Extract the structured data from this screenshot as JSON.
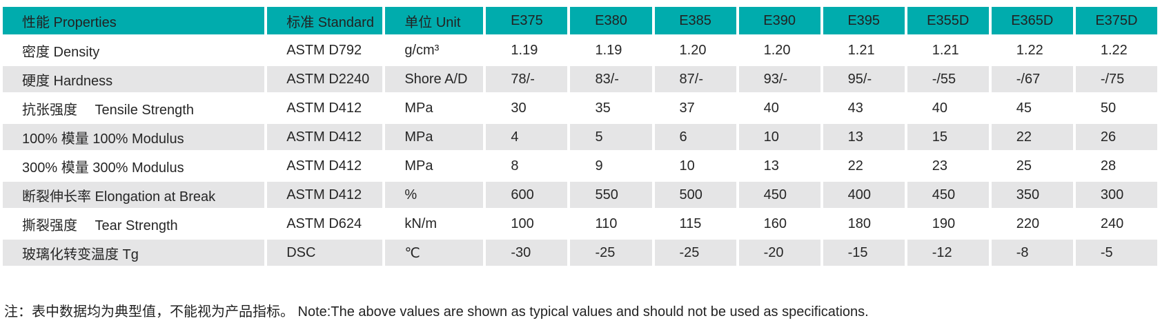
{
  "colors": {
    "header_background": "#00ACAD",
    "alt_row_background": "#E5E5E6",
    "text": "#262626"
  },
  "table": {
    "columns": [
      {
        "key": "properties",
        "label": "性能  Properties"
      },
      {
        "key": "standard",
        "label": "标准 Standard"
      },
      {
        "key": "unit",
        "label": "单位 Unit"
      },
      {
        "key": "e375",
        "label": "E375"
      },
      {
        "key": "e380",
        "label": "E380"
      },
      {
        "key": "e385",
        "label": "E385"
      },
      {
        "key": "e390",
        "label": "E390"
      },
      {
        "key": "e395",
        "label": "E395"
      },
      {
        "key": "e355d",
        "label": "E355D"
      },
      {
        "key": "e365d",
        "label": "E365D"
      },
      {
        "key": "e375d",
        "label": "E375D"
      }
    ],
    "rows": [
      {
        "property": "密度  Density",
        "standard": "ASTM D792",
        "unit": "g/cm³",
        "values": [
          "1.19",
          "1.19",
          "1.20",
          "1.20",
          "1.21",
          "1.21",
          "1.22",
          "1.22"
        ]
      },
      {
        "property": "硬度  Hardness",
        "standard": "ASTM D2240",
        "unit": "Shore A/D",
        "values": [
          "78/-",
          "83/-",
          "87/-",
          "93/-",
          "95/-",
          "-/55",
          "-/67",
          "-/75"
        ]
      },
      {
        "property": "抗张强度　  Tensile Strength",
        "standard": "ASTM D412",
        "unit": "MPa",
        "values": [
          "30",
          "35",
          "37",
          "40",
          "43",
          "40",
          "45",
          "50"
        ]
      },
      {
        "property": "100% 模量  100% Modulus",
        "standard": "ASTM D412",
        "unit": "MPa",
        "values": [
          "4",
          "5",
          "6",
          "10",
          "13",
          "15",
          "22",
          "26"
        ]
      },
      {
        "property": "300% 模量  300% Modulus",
        "standard": "ASTM D412",
        "unit": "MPa",
        "values": [
          "8",
          "9",
          "10",
          "13",
          "22",
          "23",
          "25",
          "28"
        ]
      },
      {
        "property": "断裂伸长率  Elongation at Break",
        "standard": "ASTM D412",
        "unit": "%",
        "values": [
          "600",
          "550",
          "500",
          "450",
          "400",
          "450",
          "350",
          "300"
        ]
      },
      {
        "property": "撕裂强度　  Tear Strength",
        "standard": "ASTM D624",
        "unit": "kN/m",
        "values": [
          "100",
          "110",
          "115",
          "160",
          "180",
          "190",
          "220",
          "240"
        ]
      },
      {
        "property": "玻璃化转变温度  Tg",
        "standard": "DSC",
        "unit": "℃",
        "values": [
          "-30",
          "-25",
          "-25",
          "-20",
          "-15",
          "-12",
          "-8",
          "-5"
        ]
      }
    ]
  },
  "note": "注：表中数据均为典型值，不能视为产品指标。 Note:The above values are shown as typical values and should not be used as specifications."
}
